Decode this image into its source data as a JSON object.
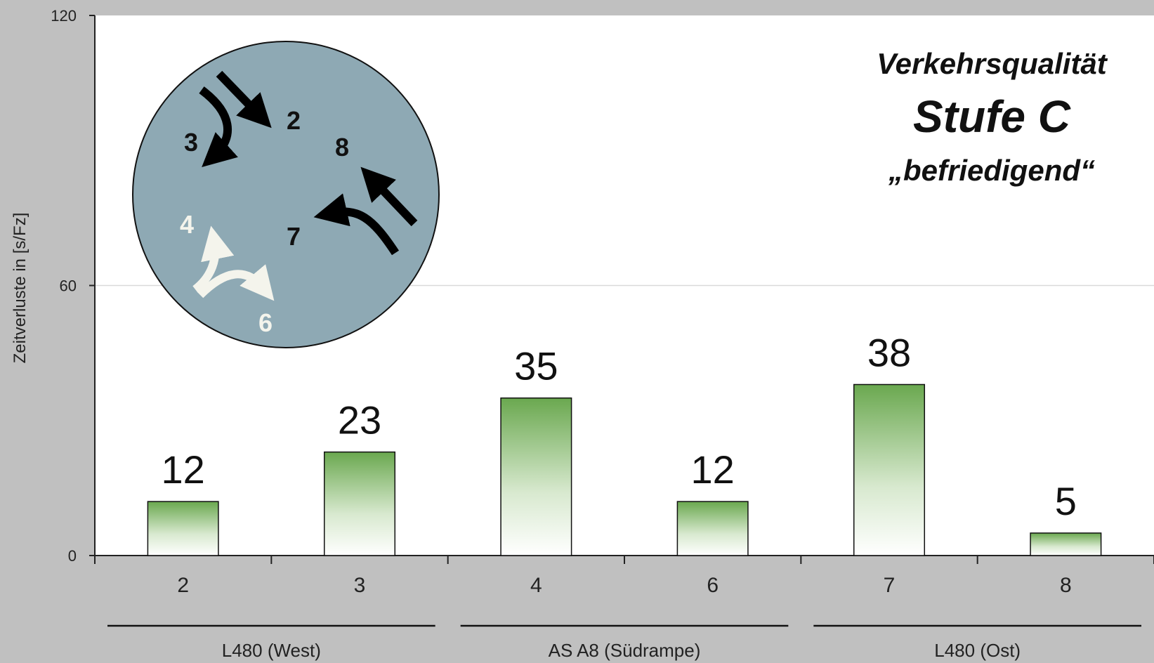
{
  "chart_data": {
    "type": "bar",
    "title": "",
    "ylabel": "Zeitverluste in [s/Fz]",
    "xlabel": "",
    "ylim": [
      0,
      120
    ],
    "yticks": [
      0,
      60,
      120
    ],
    "categories": [
      "2",
      "3",
      "4",
      "6",
      "7",
      "8"
    ],
    "values": [
      12,
      23,
      35,
      12,
      38,
      5
    ],
    "data_labels": [
      "12",
      "23",
      "35",
      "12",
      "38",
      "5"
    ],
    "groups": [
      {
        "label": "L480 (West)",
        "categories": [
          "2",
          "3"
        ]
      },
      {
        "label": "AS A8 (Südrampe)",
        "categories": [
          "4",
          "6"
        ]
      },
      {
        "label": "L480 (Ost)",
        "categories": [
          "7",
          "8"
        ]
      }
    ],
    "grid": true,
    "bar_fill": "green-to-white gradient",
    "colors": {
      "bar_top": "#6aa84f",
      "bar_bottom": "#ffffff",
      "background": "#c0c0c0",
      "plot": "#ffffff",
      "inset_circle": "#8ea9b4"
    }
  },
  "annotation": {
    "line1": "Verkehrsqualität",
    "line2": "Stufe C",
    "line3": "„befriedigend“"
  },
  "inset": {
    "description": "movement streams",
    "streams": [
      {
        "label": "2",
        "color": "dark"
      },
      {
        "label": "3",
        "color": "dark"
      },
      {
        "label": "8",
        "color": "dark"
      },
      {
        "label": "7",
        "color": "dark"
      },
      {
        "label": "4",
        "color": "light"
      },
      {
        "label": "6",
        "color": "light"
      }
    ]
  }
}
